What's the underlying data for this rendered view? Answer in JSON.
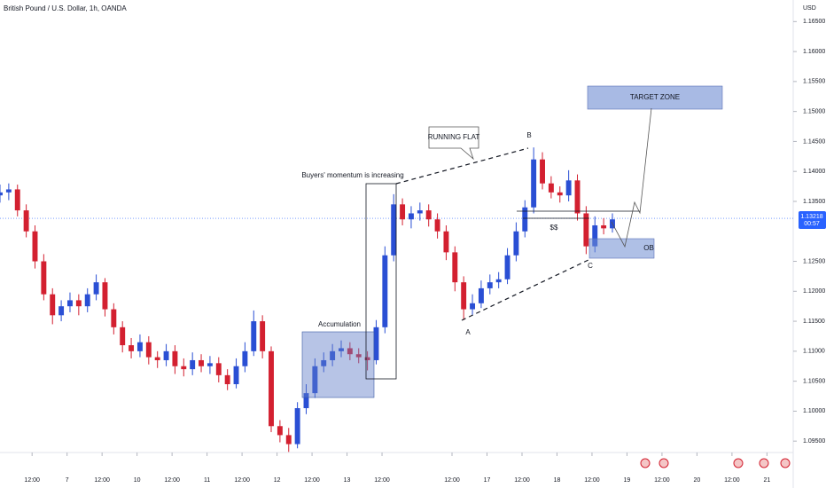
{
  "chart_data": {
    "type": "candlestick",
    "title": "British Pound / U.S. Dollar, 1h, OANDA",
    "currency": "USD",
    "x": [
      0,
      3,
      6,
      9,
      12,
      15,
      18,
      21,
      24,
      27,
      30,
      33,
      36,
      39,
      42,
      45,
      48,
      51,
      54,
      57,
      60,
      63,
      66,
      69,
      72,
      75,
      78,
      81,
      84,
      87,
      90,
      93,
      96,
      99,
      102,
      105,
      108,
      111,
      114,
      117,
      120,
      123,
      126,
      129,
      132,
      135,
      138,
      141,
      144,
      147,
      150,
      153,
      156,
      159,
      162,
      165,
      168,
      171,
      174,
      177,
      180,
      183,
      186,
      189,
      192,
      195,
      198,
      201,
      204,
      207,
      210
    ],
    "open": [
      1.136,
      1.1365,
      1.137,
      1.1335,
      1.13,
      1.125,
      1.1195,
      1.116,
      1.1175,
      1.1185,
      1.1175,
      1.1195,
      1.1215,
      1.117,
      1.114,
      1.111,
      1.11,
      1.1115,
      1.109,
      1.1085,
      1.11,
      1.1075,
      1.107,
      1.1085,
      1.1075,
      1.108,
      1.106,
      1.1045,
      1.1075,
      1.11,
      1.115,
      1.11,
      1.0975,
      1.096,
      1.0945,
      1.1005,
      1.103,
      1.1075,
      1.1085,
      1.11,
      1.1105,
      1.1095,
      1.109,
      1.1085,
      1.114,
      1.126,
      1.1345,
      1.132,
      1.133,
      1.1335,
      1.132,
      1.13,
      1.1265,
      1.1215,
      1.117,
      1.118,
      1.1205,
      1.1215,
      1.122,
      1.126,
      1.13,
      1.134,
      1.142,
      1.138,
      1.1365,
      1.136,
      1.1385,
      1.133,
      1.1275,
      1.131,
      1.1305
    ],
    "high": [
      1.1378,
      1.138,
      1.1378,
      1.1345,
      1.131,
      1.1262,
      1.1205,
      1.1185,
      1.1198,
      1.1195,
      1.1205,
      1.1228,
      1.1222,
      1.118,
      1.115,
      1.1122,
      1.1128,
      1.1125,
      1.11,
      1.1112,
      1.111,
      1.1088,
      1.1098,
      1.1095,
      1.1092,
      1.109,
      1.107,
      1.1088,
      1.1115,
      1.1168,
      1.116,
      1.1108,
      1.0985,
      1.0972,
      1.1015,
      1.1045,
      1.1088,
      1.1098,
      1.1112,
      1.1118,
      1.1115,
      1.1105,
      1.11,
      1.1152,
      1.1275,
      1.1362,
      1.1355,
      1.1342,
      1.1348,
      1.1345,
      1.133,
      1.131,
      1.1275,
      1.1225,
      1.1195,
      1.1218,
      1.1228,
      1.1232,
      1.1272,
      1.1315,
      1.1352,
      1.144,
      1.1432,
      1.1392,
      1.1375,
      1.1402,
      1.1395,
      1.1342,
      1.1325,
      1.1322,
      1.133
    ],
    "low": [
      1.1348,
      1.1352,
      1.1325,
      1.129,
      1.1238,
      1.1185,
      1.1145,
      1.115,
      1.1165,
      1.116,
      1.1165,
      1.1185,
      1.1158,
      1.1128,
      1.1098,
      1.1088,
      1.109,
      1.1078,
      1.1072,
      1.1075,
      1.1062,
      1.1058,
      1.106,
      1.1065,
      1.1062,
      1.1048,
      1.1035,
      1.1038,
      1.1065,
      1.1092,
      1.1088,
      1.0965,
      1.0948,
      1.0932,
      1.0938,
      1.0995,
      1.1022,
      1.1065,
      1.1075,
      1.109,
      1.1085,
      1.108,
      1.1068,
      1.1078,
      1.113,
      1.125,
      1.131,
      1.1305,
      1.1318,
      1.1308,
      1.1288,
      1.1252,
      1.12,
      1.1152,
      1.116,
      1.1172,
      1.1195,
      1.1205,
      1.1212,
      1.125,
      1.129,
      1.133,
      1.137,
      1.1355,
      1.1348,
      1.135,
      1.1318,
      1.1262,
      1.1265,
      1.1295,
      1.1298
    ],
    "close": [
      1.1365,
      1.137,
      1.1335,
      1.13,
      1.125,
      1.1195,
      1.116,
      1.1175,
      1.1185,
      1.1175,
      1.1195,
      1.1215,
      1.117,
      1.114,
      1.111,
      1.11,
      1.1115,
      1.109,
      1.1085,
      1.11,
      1.1075,
      1.107,
      1.1085,
      1.1075,
      1.108,
      1.106,
      1.1045,
      1.1075,
      1.11,
      1.115,
      1.11,
      1.0975,
      1.096,
      1.0945,
      1.1005,
      1.103,
      1.1075,
      1.1085,
      1.11,
      1.1105,
      1.1095,
      1.109,
      1.1085,
      1.114,
      1.126,
      1.1345,
      1.132,
      1.133,
      1.1335,
      1.132,
      1.13,
      1.1265,
      1.1215,
      1.117,
      1.118,
      1.1205,
      1.1215,
      1.122,
      1.126,
      1.13,
      1.134,
      1.142,
      1.138,
      1.1365,
      1.136,
      1.1385,
      1.133,
      1.1275,
      1.131,
      1.1305,
      1.132
    ],
    "up_color": "#2a4fd4",
    "down_color": "#d32030",
    "xlim": [
      0,
      272
    ],
    "xticks": [
      {
        "value": 11,
        "label": "12:00"
      },
      {
        "value": 23,
        "label": "7"
      },
      {
        "value": 35,
        "label": "12:00"
      },
      {
        "value": 47,
        "label": "10"
      },
      {
        "value": 59,
        "label": "12:00"
      },
      {
        "value": 71,
        "label": "11"
      },
      {
        "value": 83,
        "label": "12:00"
      },
      {
        "value": 95,
        "label": "12"
      },
      {
        "value": 107,
        "label": "12:00"
      },
      {
        "value": 119,
        "label": "13"
      },
      {
        "value": 131,
        "label": "12:00"
      },
      {
        "value": 155,
        "label": "12:00"
      },
      {
        "value": 167,
        "label": "17"
      },
      {
        "value": 179,
        "label": "12:00"
      },
      {
        "value": 191,
        "label": "18"
      },
      {
        "value": 203,
        "label": "12:00"
      },
      {
        "value": 215,
        "label": "19"
      },
      {
        "value": 227,
        "label": "12:00"
      },
      {
        "value": 239,
        "label": "20"
      },
      {
        "value": 251,
        "label": "12:00"
      },
      {
        "value": 263,
        "label": "21"
      }
    ],
    "ylim": [
      1.0931,
      1.1686
    ],
    "yticks": [
      {
        "value": 1.095,
        "label": "1.09500"
      },
      {
        "value": 1.1,
        "label": "1.10000"
      },
      {
        "value": 1.105,
        "label": "1.10500"
      },
      {
        "value": 1.11,
        "label": "1.11000"
      },
      {
        "value": 1.115,
        "label": "1.11500"
      },
      {
        "value": 1.12,
        "label": "1.12000"
      },
      {
        "value": 1.125,
        "label": "1.12500"
      },
      {
        "value": 1.135,
        "label": "1.13500"
      },
      {
        "value": 1.14,
        "label": "1.14000"
      },
      {
        "value": 1.145,
        "label": "1.14500"
      },
      {
        "value": 1.15,
        "label": "1.15000"
      },
      {
        "value": 1.155,
        "label": "1.15500"
      },
      {
        "value": 1.16,
        "label": "1.16000"
      },
      {
        "value": 1.165,
        "label": "1.16500"
      }
    ],
    "last_price": 1.13218,
    "countdown": "00:57",
    "annotations": {
      "momentum": "Buyers' momentum is increasing",
      "running_flat": "RUNNING FLAT",
      "accumulation": "Accumulation",
      "target": "TARGET ZONE",
      "ob": "OB",
      "liquidity": "$$",
      "a": "A",
      "b": "B",
      "c": "C"
    }
  }
}
